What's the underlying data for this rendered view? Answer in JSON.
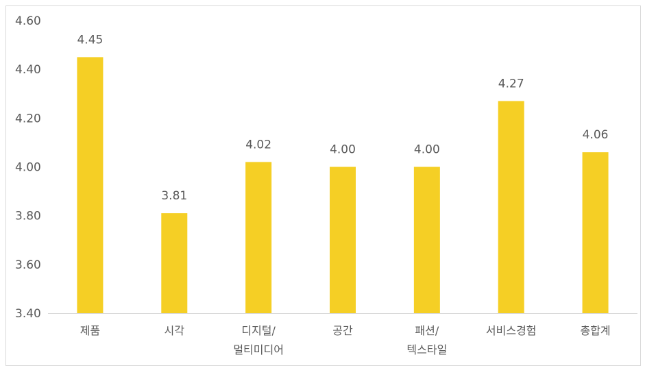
{
  "chart_data": {
    "type": "bar",
    "categories": [
      "제품",
      "시각",
      "디지털/\n멀티미디어",
      "공간",
      "패션/\n텍스타일",
      "서비스경험",
      "총합계"
    ],
    "values": [
      4.45,
      3.81,
      4.02,
      4.0,
      4.0,
      4.27,
      4.06
    ],
    "value_labels": [
      "4.45",
      "3.81",
      "4.02",
      "4.00",
      "4.00",
      "4.27",
      "4.06"
    ],
    "y_ticks": [
      "4.60",
      "4.40",
      "4.20",
      "4.00",
      "3.80",
      "3.60",
      "3.40"
    ],
    "ylim": [
      3.4,
      4.6
    ],
    "title": "",
    "xlabel": "",
    "ylabel": "",
    "grid": false,
    "legend": "none",
    "colors": {
      "bar": "#F5CF25",
      "axis": "#D9D9D9",
      "text": "#595959"
    }
  }
}
